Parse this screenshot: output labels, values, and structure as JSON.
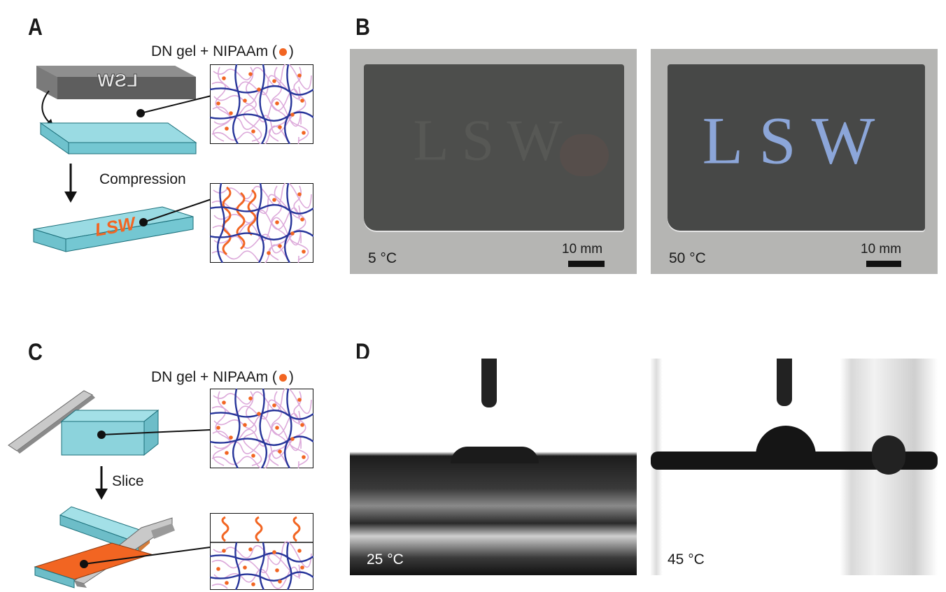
{
  "panels": {
    "A": {
      "letter": "A",
      "material_label": "DN gel + NIPAAm (",
      "material_label_end": ")",
      "step_label": "Compression",
      "pattern_text": "LSW",
      "stamp_text": "LSW"
    },
    "B": {
      "letter": "B",
      "left_temp": "5 °C",
      "right_temp": "50 °C",
      "scale_label_left": "10 mm",
      "scale_label_right": "10 mm",
      "pattern_text": "LSW"
    },
    "C": {
      "letter": "C",
      "material_label": "DN gel + NIPAAm (",
      "material_label_end": ")",
      "step_label": "Slice"
    },
    "D": {
      "letter": "D",
      "left_temp": "25 °C",
      "right_temp": "45 °C"
    }
  },
  "colors": {
    "gel_cyan": "#86d3dc",
    "gel_cyan_dark": "#4aa9b6",
    "network_blue": "#27359a",
    "polymer_pink": "#d9a6d8",
    "nipaam_orange": "#f26522",
    "stamp_gray": "#6b6b6b",
    "photo_bg_gray": "#b3b3b1",
    "gel_dark": "#4a4b4a",
    "letters_blue": "#8ca6d9"
  }
}
